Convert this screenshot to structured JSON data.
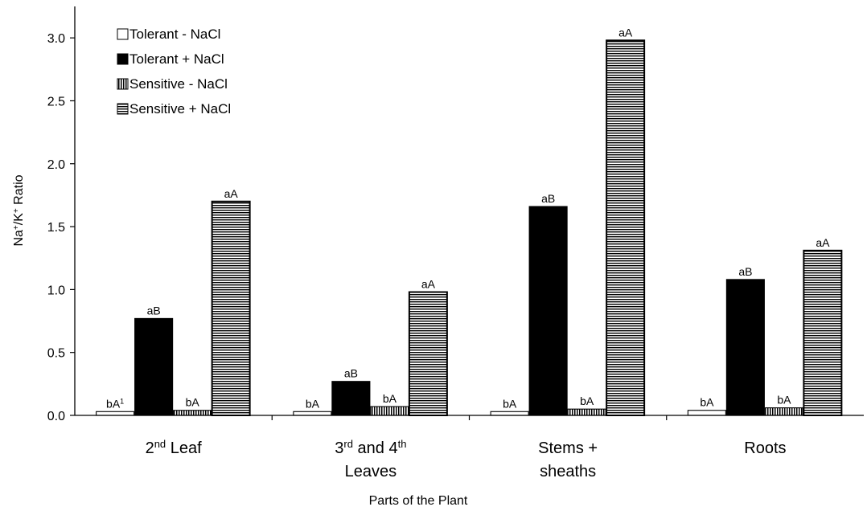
{
  "chart_data": {
    "type": "bar",
    "title": "",
    "xlabel": "Parts of the Plant",
    "ylabel": "Na⁺/K⁺ Ratio",
    "ylim": [
      0,
      3.25
    ],
    "yticks": [
      "0.0",
      "0.5",
      "1.0",
      "1.5",
      "2.0",
      "2.5",
      "3.0"
    ],
    "grid": false,
    "legend_position": "top-left",
    "categories": [
      [
        "2nd Leaf"
      ],
      [
        "3rd and 4th",
        "Leaves"
      ],
      [
        "Stems +",
        "sheaths"
      ],
      [
        "Roots"
      ]
    ],
    "series": [
      {
        "name": "Tolerant - NaCl",
        "pattern": "white",
        "values": [
          0.03,
          0.03,
          0.03,
          0.04
        ],
        "labels": [
          "bA¹",
          "bA",
          "bA",
          "bA"
        ]
      },
      {
        "name": "Tolerant + NaCl",
        "pattern": "black",
        "values": [
          0.77,
          0.27,
          1.66,
          1.08
        ],
        "labels": [
          "aB",
          "aB",
          "aB",
          "aB"
        ]
      },
      {
        "name": "Sensitive - NaCl",
        "pattern": "vertical-stripes",
        "values": [
          0.04,
          0.07,
          0.05,
          0.06
        ],
        "labels": [
          "bA",
          "bA",
          "bA",
          "bA"
        ]
      },
      {
        "name": "Sensitive + NaCl",
        "pattern": "horizontal-stripes",
        "values": [
          1.7,
          0.98,
          2.98,
          1.31
        ],
        "labels": [
          "aA",
          "aA",
          "aA",
          "aA"
        ]
      }
    ]
  }
}
